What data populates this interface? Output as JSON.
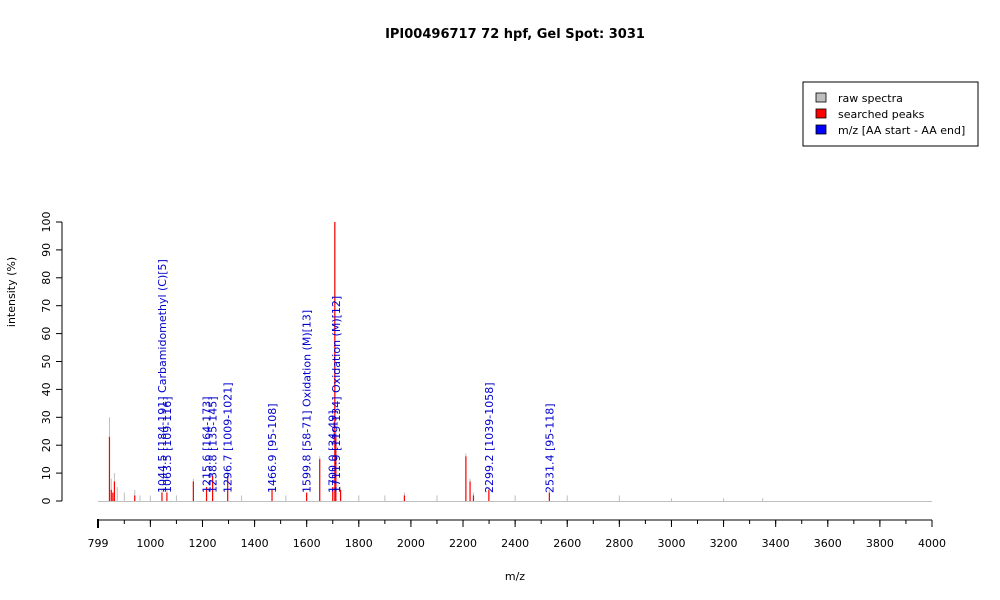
{
  "chart_data": {
    "type": "bar",
    "title": "IPI00496717  72 hpf, Gel Spot: 3031",
    "xlabel": "m/z",
    "ylabel": "intensity (%)",
    "xlim": [
      799,
      4000
    ],
    "ylim": [
      0,
      100
    ],
    "x_ticks": [
      "799",
      "1000",
      "1200",
      "1400",
      "1600",
      "1800",
      "2000",
      "2200",
      "2400",
      "2600",
      "2800",
      "3000",
      "3200",
      "3400",
      "3600",
      "3800",
      "4000"
    ],
    "y_ticks": [
      "0",
      "10",
      "20",
      "30",
      "40",
      "50",
      "60",
      "70",
      "80",
      "90",
      "100"
    ],
    "legend": {
      "position": "top-right",
      "entries": [
        {
          "label": "raw spectra",
          "color": "#bebebe"
        },
        {
          "label": "searched peaks",
          "color": "#ff0000"
        },
        {
          "label": "m/z [AA start - AA end]",
          "color": "#0000ff"
        }
      ]
    },
    "series": [
      {
        "name": "raw spectra",
        "color": "#bebebe",
        "points": [
          [
            843,
            30
          ],
          [
            850,
            8
          ],
          [
            862,
            10
          ],
          [
            873,
            5
          ],
          [
            900,
            3
          ],
          [
            940,
            4
          ],
          [
            960,
            2
          ],
          [
            1000,
            2
          ],
          [
            1044.5,
            4
          ],
          [
            1063.5,
            4
          ],
          [
            1100,
            2
          ],
          [
            1165,
            8
          ],
          [
            1215.6,
            5
          ],
          [
            1238.8,
            10
          ],
          [
            1296.7,
            10
          ],
          [
            1350,
            2
          ],
          [
            1466.9,
            4
          ],
          [
            1520,
            2
          ],
          [
            1599.8,
            3
          ],
          [
            1650,
            16
          ],
          [
            1700,
            5
          ],
          [
            1708,
            100
          ],
          [
            1711.9,
            25
          ],
          [
            1730,
            5
          ],
          [
            1800,
            2
          ],
          [
            1900,
            2
          ],
          [
            1975,
            3
          ],
          [
            2100,
            2
          ],
          [
            2211,
            17
          ],
          [
            2227,
            8
          ],
          [
            2240,
            3
          ],
          [
            2299.2,
            5
          ],
          [
            2400,
            2
          ],
          [
            2531.4,
            4
          ],
          [
            2600,
            2
          ],
          [
            2800,
            2
          ],
          [
            3000,
            1
          ],
          [
            3200,
            1
          ],
          [
            3350,
            1
          ]
        ]
      },
      {
        "name": "searched peaks",
        "color": "#ff0000",
        "points": [
          [
            843,
            23
          ],
          [
            850,
            4
          ],
          [
            856,
            3
          ],
          [
            862,
            7
          ],
          [
            940,
            2
          ],
          [
            1044.5,
            3
          ],
          [
            1063.5,
            3
          ],
          [
            1165,
            7
          ],
          [
            1215.6,
            5
          ],
          [
            1238.8,
            9
          ],
          [
            1296.7,
            9
          ],
          [
            1466.9,
            4
          ],
          [
            1599.8,
            3
          ],
          [
            1650,
            15
          ],
          [
            1700,
            5
          ],
          [
            1708,
            100
          ],
          [
            1711.9,
            23
          ],
          [
            1730,
            4
          ],
          [
            1975,
            2
          ],
          [
            2211,
            16
          ],
          [
            2227,
            7
          ],
          [
            2240,
            2
          ],
          [
            2299.2,
            4
          ],
          [
            2531.4,
            3
          ]
        ]
      }
    ],
    "annotations": [
      {
        "x": 1044.5,
        "label": "1044.5 [184-191] Carbamidomethyl (C)[5]"
      },
      {
        "x": 1063.5,
        "label": "1063.5 [109-116]"
      },
      {
        "x": 1215.6,
        "label": "1215.6 [164-173]"
      },
      {
        "x": 1238.8,
        "label": "1238.8 [135-145]"
      },
      {
        "x": 1296.7,
        "label": "1296.7 [1009-1021]"
      },
      {
        "x": 1466.9,
        "label": "1466.9 [95-108]"
      },
      {
        "x": 1599.8,
        "label": "1599.8 [58-71] Oxidation (M)[13]"
      },
      {
        "x": 1700.0,
        "label": "1700.0 [34-49]"
      },
      {
        "x": 1711.9,
        "label": "1711.9 [119-134] Oxidation (M)[12]"
      },
      {
        "x": 2299.2,
        "label": "2299.2 [1039-1058]"
      },
      {
        "x": 2531.4,
        "label": "2531.4 [95-118]"
      }
    ]
  }
}
